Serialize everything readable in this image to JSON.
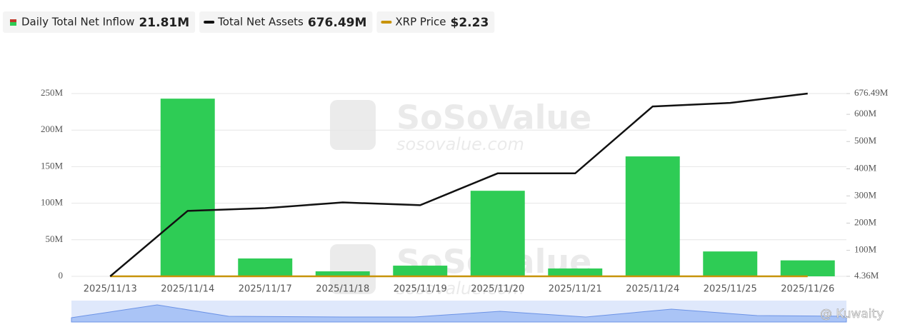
{
  "chart_data": {
    "type": "bar-line",
    "categories": [
      "2025/11/13",
      "2025/11/14",
      "2025/11/17",
      "2025/11/18",
      "2025/11/19",
      "2025/11/20",
      "2025/11/21",
      "2025/11/24",
      "2025/11/25",
      "2025/11/26"
    ],
    "series": [
      {
        "name": "Daily Total Net Inflow",
        "legend_value": "21.81M",
        "color": "#2ecc55",
        "kind": "bar",
        "axis": "y",
        "values": [
          0,
          243,
          24.4,
          6.8,
          14.6,
          117,
          10.7,
          164,
          34,
          21.81
        ]
      },
      {
        "name": "Total Net Assets",
        "legend_value": "676.49M",
        "color": "#111111",
        "kind": "line",
        "axis": "y2",
        "values": [
          4.36,
          245,
          255,
          276,
          266,
          383,
          383,
          629,
          642,
          676.49
        ]
      },
      {
        "name": "XRP Price",
        "legend_value": "$2.23",
        "color": "#c8930a",
        "kind": "flat"
      }
    ],
    "ylim": [
      0,
      250
    ],
    "yticks": [
      0,
      {
        "value": 50,
        "label": "50M"
      },
      {
        "value": 100,
        "label": "100M"
      },
      {
        "value": 150,
        "label": "150M"
      },
      {
        "value": 200,
        "label": "200M"
      },
      {
        "value": 250,
        "label": "250M"
      }
    ],
    "y2lim": [
      4.36,
      676.49
    ],
    "y2ticks": [
      {
        "value": 4.36,
        "label": "4.36M"
      },
      {
        "value": 100,
        "label": "100M"
      },
      {
        "value": 200,
        "label": "200M"
      },
      {
        "value": 300,
        "label": "300M"
      },
      {
        "value": 400,
        "label": "400M"
      },
      {
        "value": 500,
        "label": "500M"
      },
      {
        "value": 600,
        "label": "600M"
      },
      {
        "value": 676.49,
        "label": "676.49M"
      }
    ],
    "grid": true,
    "watermark": "SoSoValue",
    "watermark_url": "sosovalue.com",
    "credit": "@ Kuwaity"
  }
}
